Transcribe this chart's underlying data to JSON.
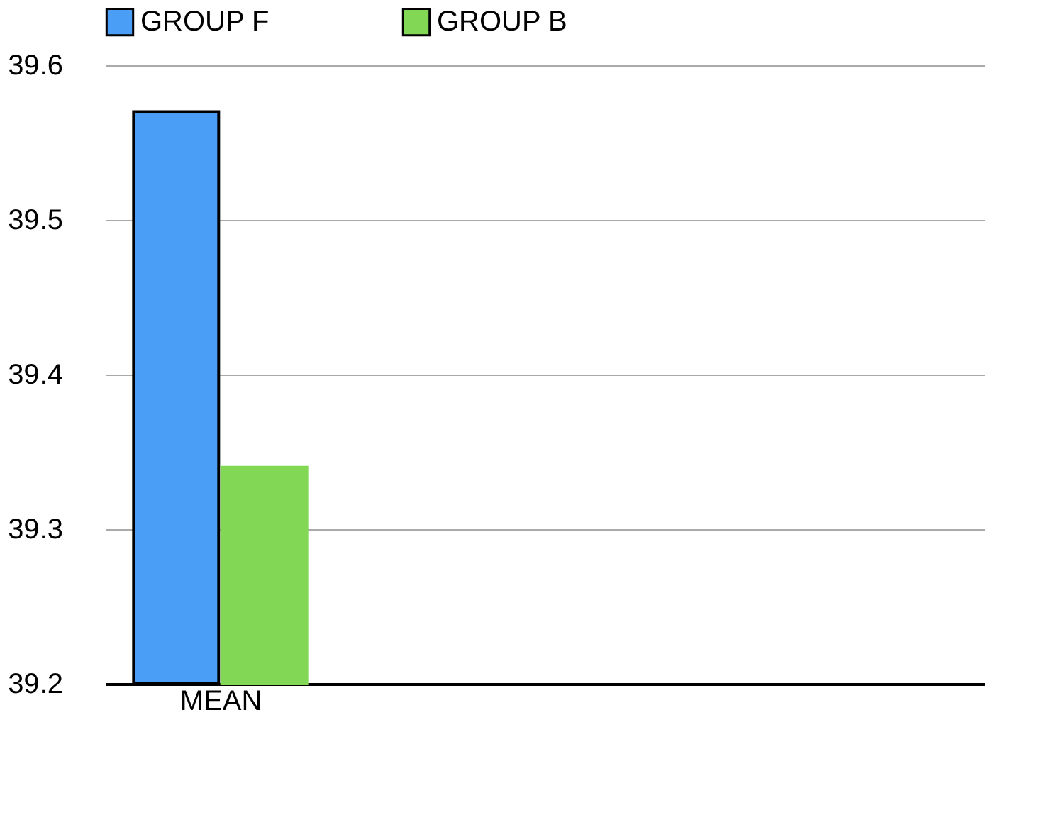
{
  "chart_data": {
    "type": "bar",
    "categories": [
      "MEAN"
    ],
    "series": [
      {
        "name": "GROUP F",
        "color": "#4a9ef5",
        "values": [
          39.57
        ]
      },
      {
        "name": "GROUP B",
        "color": "#82d855",
        "values": [
          39.34
        ]
      }
    ],
    "ylim": [
      39.2,
      39.6
    ],
    "yticks": [
      39.2,
      39.3,
      39.4,
      39.5,
      39.6
    ],
    "grid": "y",
    "legend": "top"
  }
}
